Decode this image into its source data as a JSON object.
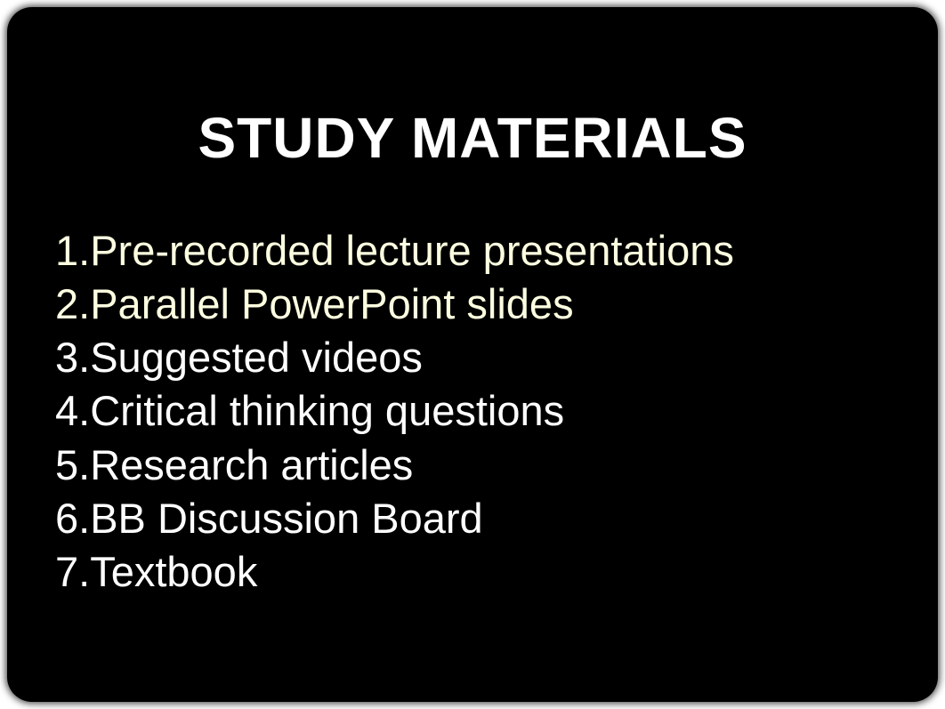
{
  "slide": {
    "title": "STUDY MATERIALS",
    "background_color": "#000000",
    "border_radius": 28,
    "title_color": "#ffffff",
    "title_fontsize": 64,
    "title_fontweight": "bold",
    "list_fontsize": 47,
    "list_color_default": "#ffffff",
    "list_color_highlight": "#fdfde0",
    "items": [
      {
        "text": "Pre-recorded lecture presentations",
        "highlight": true
      },
      {
        "text": "Parallel PowerPoint slides",
        "highlight": true
      },
      {
        "text": "Suggested videos",
        "highlight": false
      },
      {
        "text": "Critical thinking questions",
        "highlight": false
      },
      {
        "text": "Research articles",
        "highlight": false
      },
      {
        "text": "BB Discussion Board",
        "highlight": false
      },
      {
        "text": "Textbook",
        "highlight": false
      }
    ]
  }
}
